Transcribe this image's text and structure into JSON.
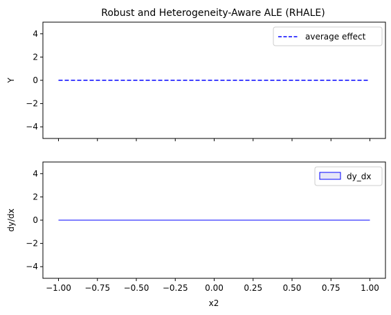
{
  "chart_data": [
    {
      "type": "line",
      "title": "Robust and Heterogeneity-Aware ALE (RHALE)",
      "xlabel": "",
      "ylabel": "Y",
      "xlim": [
        -1.1,
        1.1
      ],
      "ylim": [
        -5,
        5
      ],
      "yticks": [
        4,
        2,
        0,
        -2,
        -4
      ],
      "ytick_labels": [
        "4",
        "2",
        "0",
        "−2",
        "−4"
      ],
      "xticks": [
        -1.0,
        -0.75,
        -0.5,
        -0.25,
        0.0,
        0.25,
        0.5,
        0.75,
        1.0
      ],
      "xtick_labels_visible": false,
      "grid": false,
      "legend": {
        "position": "top-right",
        "entries": [
          {
            "label": "average effect",
            "style": "dashed-line",
            "color": "#0000ff"
          }
        ]
      },
      "series": [
        {
          "name": "average effect",
          "x": [
            -1.0,
            1.0
          ],
          "y": [
            0,
            0
          ],
          "color": "#0000ff",
          "dashed": true
        }
      ]
    },
    {
      "type": "bar",
      "title": "",
      "xlabel": "x2",
      "ylabel": "dy/dx",
      "xlim": [
        -1.1,
        1.1
      ],
      "ylim": [
        -5,
        5
      ],
      "yticks": [
        4,
        2,
        0,
        -2,
        -4
      ],
      "ytick_labels": [
        "4",
        "2",
        "0",
        "−2",
        "−4"
      ],
      "xticks": [
        -1.0,
        -0.75,
        -0.5,
        -0.25,
        0.0,
        0.25,
        0.5,
        0.75,
        1.0
      ],
      "xtick_labels": [
        "−1.00",
        "−0.75",
        "−0.50",
        "−0.25",
        "0.00",
        "0.25",
        "0.50",
        "0.75",
        "1.00"
      ],
      "grid": false,
      "legend": {
        "position": "top-right",
        "entries": [
          {
            "label": "dy_dx",
            "style": "box",
            "color": "#0000ff",
            "fill": "#e6e6f7"
          }
        ]
      },
      "series": [
        {
          "name": "dy_dx",
          "x_range": [
            -1.0,
            1.0
          ],
          "value": 0,
          "color": "#0000ff"
        }
      ]
    }
  ]
}
